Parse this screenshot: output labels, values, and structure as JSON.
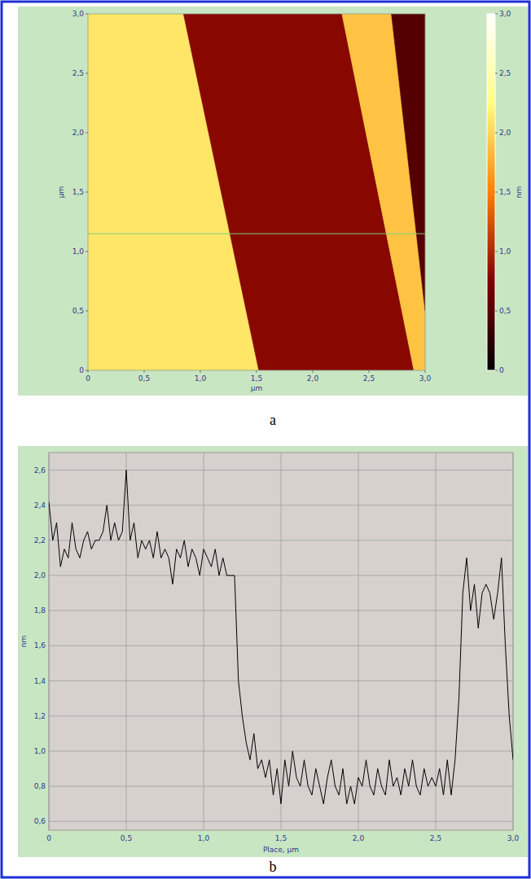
{
  "chart_data": [
    {
      "type": "heatmap",
      "panel_label": "a",
      "xlabel": "μm",
      "ylabel": "μm",
      "xlim": [
        0,
        3
      ],
      "ylim": [
        0,
        3
      ],
      "xticks": [
        0,
        {
          "value": 0.5,
          "label": "0,5"
        },
        {
          "value": 1,
          "label": "1,0"
        },
        {
          "value": 1.5,
          "label": "1,5"
        },
        {
          "value": 2,
          "label": "2,0"
        },
        {
          "value": 2.5,
          "label": "2,5"
        },
        {
          "value": 3,
          "label": "3,0"
        }
      ],
      "yticks": [
        0,
        {
          "value": 0.5,
          "label": "0,5"
        },
        {
          "value": 1,
          "label": "1,0"
        },
        {
          "value": 1.5,
          "label": "1,5"
        },
        {
          "value": 2,
          "label": "2,0"
        },
        {
          "value": 2.5,
          "label": "2,5"
        },
        {
          "value": 3,
          "label": "3,0"
        }
      ],
      "colorbar": {
        "label": "nm",
        "range": [
          0,
          3
        ],
        "ticks": [
          0,
          {
            "value": 0.5,
            "label": "0,5"
          },
          {
            "value": 1,
            "label": "1,0"
          },
          {
            "value": 1.5,
            "label": "1,5"
          },
          {
            "value": 2,
            "label": "2,0"
          },
          {
            "value": 2.5,
            "label": "2,5"
          },
          {
            "value": 3,
            "label": "3,0"
          }
        ]
      },
      "terraces": [
        {
          "height": 2.1,
          "polygon": [
            [
              0,
              0
            ],
            [
              1.52,
              0
            ],
            [
              0.85,
              3
            ],
            [
              0,
              3
            ]
          ]
        },
        {
          "height": 0.8,
          "polygon": [
            [
              1.52,
              0
            ],
            [
              2.9,
              0
            ],
            [
              2.26,
              3
            ],
            [
              0.85,
              3
            ]
          ]
        },
        {
          "height": 1.9,
          "polygon": [
            [
              2.9,
              0
            ],
            [
              3,
              0
            ],
            [
              3,
              0.5
            ],
            [
              2.7,
              3
            ],
            [
              2.26,
              3
            ]
          ]
        },
        {
          "height": 0.5,
          "polygon": [
            [
              3,
              0.5
            ],
            [
              3,
              3
            ],
            [
              2.7,
              3
            ]
          ]
        }
      ],
      "profile_line_y": 1.15
    },
    {
      "type": "line",
      "panel_label": "b",
      "xlabel": "Place, μm",
      "ylabel": "nm",
      "xlim": [
        0,
        3
      ],
      "ylim": [
        0.55,
        2.7
      ],
      "grid": true,
      "color": "#000000",
      "xticks": [
        0,
        {
          "value": 0.5,
          "label": "0,5"
        },
        {
          "value": 1,
          "label": "1,0"
        },
        {
          "value": 1.5,
          "label": "1,5"
        },
        {
          "value": 2,
          "label": "2,0"
        },
        {
          "value": 2.5,
          "label": "2,5"
        },
        {
          "value": 3,
          "label": "3,0"
        }
      ],
      "yticks": [
        {
          "value": 0.6,
          "label": "0,6"
        },
        {
          "value": 0.8,
          "label": "0,8"
        },
        {
          "value": 1,
          "label": "1,0"
        },
        {
          "value": 1.2,
          "label": "1,2"
        },
        {
          "value": 1.4,
          "label": "1,4"
        },
        {
          "value": 1.6,
          "label": "1,6"
        },
        {
          "value": 1.8,
          "label": "1,8"
        },
        {
          "value": 2,
          "label": "2,0"
        },
        {
          "value": 2.2,
          "label": "2,2"
        },
        {
          "value": 2.4,
          "label": "2,4"
        },
        {
          "value": 2.6,
          "label": "2,6"
        }
      ],
      "x": [
        0,
        0.025,
        0.05,
        0.075,
        0.1,
        0.125,
        0.15,
        0.175,
        0.2,
        0.225,
        0.25,
        0.275,
        0.3,
        0.325,
        0.35,
        0.375,
        0.4,
        0.425,
        0.45,
        0.475,
        0.5,
        0.525,
        0.55,
        0.575,
        0.6,
        0.625,
        0.65,
        0.675,
        0.7,
        0.725,
        0.75,
        0.775,
        0.8,
        0.825,
        0.85,
        0.875,
        0.9,
        0.925,
        0.95,
        0.975,
        1,
        1.025,
        1.05,
        1.075,
        1.1,
        1.125,
        1.15,
        1.175,
        1.2,
        1.225,
        1.25,
        1.275,
        1.3,
        1.325,
        1.35,
        1.375,
        1.4,
        1.425,
        1.45,
        1.475,
        1.5,
        1.525,
        1.55,
        1.575,
        1.6,
        1.625,
        1.65,
        1.675,
        1.7,
        1.725,
        1.75,
        1.775,
        1.8,
        1.825,
        1.85,
        1.875,
        1.9,
        1.925,
        1.95,
        1.975,
        2,
        2.025,
        2.05,
        2.075,
        2.1,
        2.125,
        2.15,
        2.175,
        2.2,
        2.225,
        2.25,
        2.275,
        2.3,
        2.325,
        2.35,
        2.375,
        2.4,
        2.425,
        2.45,
        2.475,
        2.5,
        2.525,
        2.55,
        2.575,
        2.6,
        2.625,
        2.65,
        2.675,
        2.7,
        2.725,
        2.75,
        2.775,
        2.8,
        2.825,
        2.85,
        2.875,
        2.9,
        2.925,
        2.95,
        2.975,
        3
      ],
      "values": [
        2.42,
        2.2,
        2.3,
        2.05,
        2.15,
        2.1,
        2.3,
        2.15,
        2.1,
        2.2,
        2.25,
        2.15,
        2.2,
        2.2,
        2.25,
        2.4,
        2.2,
        2.3,
        2.2,
        2.25,
        2.6,
        2.2,
        2.3,
        2.1,
        2.2,
        2.15,
        2.2,
        2.1,
        2.25,
        2.1,
        2.15,
        2.1,
        1.95,
        2.15,
        2.1,
        2.2,
        2.05,
        2.15,
        2.1,
        2.0,
        2.15,
        2.1,
        2.05,
        2.15,
        2.0,
        2.1,
        2.0,
        2.0,
        2.0,
        1.4,
        1.2,
        1.05,
        0.95,
        1.1,
        0.9,
        0.95,
        0.85,
        0.95,
        0.75,
        0.9,
        0.7,
        0.95,
        0.8,
        1.0,
        0.85,
        0.8,
        0.95,
        0.8,
        0.75,
        0.9,
        0.8,
        0.7,
        0.85,
        0.95,
        0.8,
        0.75,
        0.9,
        0.7,
        0.8,
        0.7,
        0.85,
        0.8,
        0.95,
        0.8,
        0.75,
        0.9,
        0.8,
        0.75,
        0.95,
        0.8,
        0.85,
        0.75,
        0.9,
        0.8,
        0.95,
        0.8,
        0.75,
        0.9,
        0.8,
        0.85,
        0.8,
        0.9,
        0.75,
        0.95,
        0.75,
        0.95,
        1.3,
        1.9,
        2.1,
        1.8,
        1.95,
        1.7,
        1.9,
        1.95,
        1.9,
        1.75,
        1.9,
        2.1,
        1.6,
        1.2,
        0.95
      ]
    }
  ]
}
